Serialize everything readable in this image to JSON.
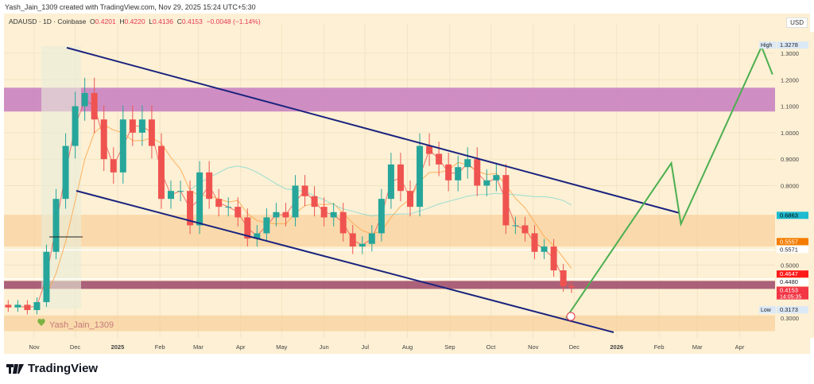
{
  "credit": "Yash_Jain_1309 created with TradingView.com, Nov 29, 2025 15:24 UTC+5:30",
  "legend": {
    "symbol": "ADAUSD · 1D · Coinbase",
    "o_label": "O",
    "o": "0.4201",
    "h_label": "H",
    "h": "0.4220",
    "l_label": "L",
    "l": "0.4136",
    "c_label": "C",
    "c": "0.4153",
    "change": "−0.0048 (−1.14%)"
  },
  "currency": "USD",
  "watermark": "Yash_Jain_1309",
  "brand": "TradingView",
  "colors": {
    "up": "#26a69a",
    "down": "#ef5350",
    "channel": "#1a237e",
    "projection": "#4caf50",
    "resistance_zone": "#c77dc0",
    "support_zone": "#f8c98a",
    "current_zone": "#9c4868"
  },
  "chart_data": {
    "type": "candlestick",
    "symbol": "ADAUSD",
    "interval": "1D",
    "exchange": "Coinbase",
    "x_ticks": [
      "Nov",
      "Dec",
      "2025",
      "Feb",
      "Mar",
      "Apr",
      "May",
      "Jun",
      "Jul",
      "Aug",
      "Sep",
      "Oct",
      "Nov",
      "Dec",
      "2026",
      "Feb",
      "Mar",
      "Apr"
    ],
    "x_tick_dates": [
      "2024-11-01",
      "2024-12-01",
      "2025-01-01",
      "2025-02-01",
      "2025-03-01",
      "2025-04-01",
      "2025-05-01",
      "2025-06-01",
      "2025-07-01",
      "2025-08-01",
      "2025-09-01",
      "2025-10-01",
      "2025-11-01",
      "2025-12-01",
      "2026-01-01",
      "2026-02-01",
      "2026-03-01",
      "2026-04-01"
    ],
    "y_ticks": [
      1.3,
      1.2,
      1.1,
      1.0,
      0.9,
      0.8,
      0.5,
      0.3
    ],
    "ylim": [
      0.25,
      1.36
    ],
    "weekly_closes": {
      "dates": [
        "2024-10-06",
        "2024-10-13",
        "2024-10-20",
        "2024-10-27",
        "2024-11-03",
        "2024-11-10",
        "2024-11-17",
        "2024-11-24",
        "2024-12-01",
        "2024-12-08",
        "2024-12-15",
        "2024-12-22",
        "2024-12-29",
        "2025-01-05",
        "2025-01-12",
        "2025-01-19",
        "2025-01-26",
        "2025-02-02",
        "2025-02-09",
        "2025-02-16",
        "2025-02-23",
        "2025-03-02",
        "2025-03-09",
        "2025-03-16",
        "2025-03-23",
        "2025-03-30",
        "2025-04-06",
        "2025-04-13",
        "2025-04-20",
        "2025-04-27",
        "2025-05-04",
        "2025-05-11",
        "2025-05-18",
        "2025-05-25",
        "2025-06-01",
        "2025-06-08",
        "2025-06-15",
        "2025-06-22",
        "2025-06-29",
        "2025-07-06",
        "2025-07-13",
        "2025-07-20",
        "2025-07-27",
        "2025-08-03",
        "2025-08-10",
        "2025-08-17",
        "2025-08-24",
        "2025-08-31",
        "2025-09-07",
        "2025-09-14",
        "2025-09-21",
        "2025-09-28",
        "2025-10-05",
        "2025-10-12",
        "2025-10-19",
        "2025-10-26",
        "2025-11-02",
        "2025-11-09",
        "2025-11-16",
        "2025-11-23",
        "2025-11-29"
      ],
      "close": [
        0.35,
        0.34,
        0.35,
        0.33,
        0.36,
        0.55,
        0.75,
        0.95,
        1.1,
        1.15,
        1.05,
        0.9,
        0.85,
        1.05,
        1.0,
        1.05,
        0.95,
        0.75,
        0.78,
        0.78,
        0.65,
        0.85,
        0.75,
        0.72,
        0.72,
        0.68,
        0.6,
        0.62,
        0.68,
        0.7,
        0.68,
        0.8,
        0.76,
        0.72,
        0.68,
        0.7,
        0.62,
        0.57,
        0.58,
        0.62,
        0.75,
        0.88,
        0.78,
        0.72,
        0.95,
        0.92,
        0.88,
        0.82,
        0.87,
        0.9,
        0.8,
        0.82,
        0.84,
        0.65,
        0.65,
        0.62,
        0.55,
        0.57,
        0.48,
        0.42,
        0.4153
      ]
    },
    "projection": {
      "dates": [
        "2025-11-25",
        "2026-02-10",
        "2026-02-17",
        "2026-04-17",
        "2026-04-25"
      ],
      "prices": [
        0.3,
        0.885,
        0.655,
        1.325,
        1.22
      ]
    },
    "zones": [
      {
        "from": 1.08,
        "to": 1.17,
        "kind": "resistance"
      },
      {
        "from": 0.57,
        "to": 0.69,
        "kind": "support"
      },
      {
        "from": 0.41,
        "to": 0.44,
        "kind": "current"
      },
      {
        "from": 0.25,
        "to": 0.31,
        "kind": "support"
      }
    ],
    "price_badges": [
      {
        "label": "High",
        "value": "1.3278",
        "bg": "#dbe9f7",
        "fg": "#222"
      },
      {
        "value": "0.6863",
        "bg": "#1fbad0",
        "fg": "#000"
      },
      {
        "value": "0.5571",
        "bg": "#ffffff",
        "fg": "#222"
      },
      {
        "value": "0.5557",
        "bg": "#f57c00",
        "fg": "#fff"
      },
      {
        "value": "0.4647",
        "bg": "#ff1a1a",
        "fg": "#fff"
      },
      {
        "value": "0.4480",
        "bg": "#ffffff",
        "fg": "#222"
      },
      {
        "value": "0.4153",
        "sub": "14:05:35",
        "bg": "#f23645",
        "fg": "#fff"
      },
      {
        "label": "Low",
        "value": "0.3173",
        "bg": "#dbe9f7",
        "fg": "#222"
      }
    ]
  }
}
